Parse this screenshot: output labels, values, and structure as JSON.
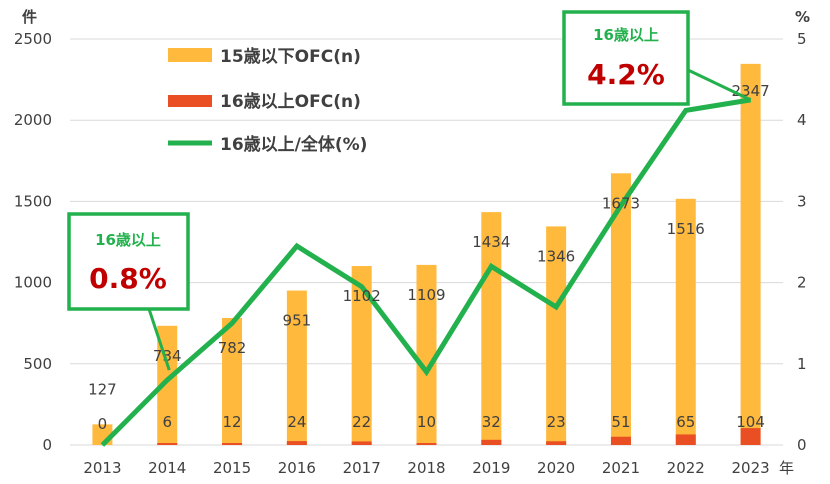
{
  "chart_data": {
    "type": "bar",
    "categories": [
      "2013",
      "2014",
      "2015",
      "2016",
      "2017",
      "2018",
      "2019",
      "2020",
      "2021",
      "2022",
      "2023"
    ],
    "series": [
      {
        "name": "15歳以下OFC(n)",
        "type": "bar",
        "axis": "left",
        "color": "#ffb93d",
        "values": [
          127,
          734,
          782,
          951,
          1102,
          1109,
          1434,
          1346,
          1673,
          1516,
          2347
        ]
      },
      {
        "name": "16歳以上OFC(n)",
        "type": "bar",
        "axis": "left",
        "color": "#ea4f24",
        "values": [
          0,
          6,
          12,
          24,
          22,
          10,
          32,
          23,
          51,
          65,
          104
        ]
      },
      {
        "name": "16歳以上/全体(%)",
        "type": "line",
        "axis": "right",
        "color": "#22b14c",
        "values": [
          0,
          0.8,
          1.5,
          2.45,
          1.95,
          0.9,
          2.2,
          1.7,
          2.95,
          4.12,
          4.25
        ]
      }
    ],
    "bar_labels": [
      "127",
      "734",
      "782",
      "951",
      "1102",
      "1109",
      "1434",
      "1346",
      "1673",
      "1516",
      "2347"
    ],
    "small_labels": [
      "0",
      "6",
      "12",
      "24",
      "22",
      "10",
      "32",
      "23",
      "51",
      "65",
      "104"
    ],
    "left_axis": {
      "unit": "件",
      "ylim": [
        0,
        2500
      ],
      "ticks": [
        0,
        500,
        1000,
        1500,
        2000,
        2500
      ]
    },
    "right_axis": {
      "unit": "%",
      "ylim": [
        0,
        5
      ],
      "ticks": [
        0,
        1,
        2,
        3,
        4,
        5
      ]
    },
    "x_unit": "年",
    "legend_position": "top-left",
    "callouts": [
      {
        "title": "16歳以上",
        "value": "0.8%"
      },
      {
        "title": "16歳以上",
        "value": "4.2%"
      }
    ]
  }
}
